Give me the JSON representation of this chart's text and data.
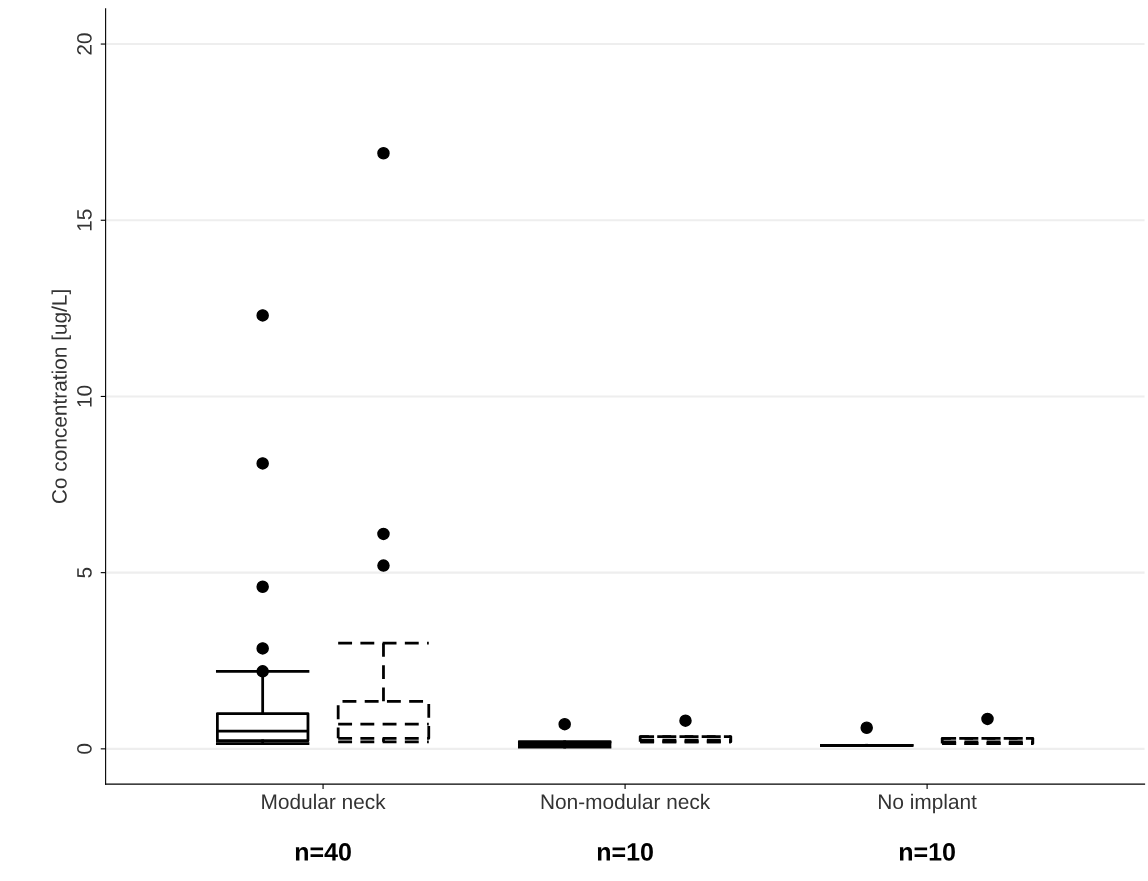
{
  "chart_data": {
    "type": "box",
    "ylabel": "Co concentration [ug/L]",
    "categories": [
      "Modular neck",
      "Non-modular neck",
      "No implant"
    ],
    "series": [
      {
        "color": "#000000",
        "line_style": "solid",
        "boxes": [
          {
            "low": 0.15,
            "q1": 0.23,
            "median": 0.5,
            "q3": 1.0,
            "high": 2.2,
            "outliers": [
              12.3,
              8.1,
              4.6,
              2.85,
              2.2
            ]
          },
          {
            "low": 0.05,
            "q1": 0.1,
            "median": 0.15,
            "q3": 0.2,
            "high": 0.2,
            "outliers": [
              0.7
            ]
          },
          {
            "low": 0.1,
            "q1": 0.1,
            "median": 0.1,
            "q3": 0.1,
            "high": 0.1,
            "outliers": [
              0.6
            ]
          }
        ]
      },
      {
        "color": "#000000",
        "line_style": "dashed",
        "boxes": [
          {
            "low": 0.2,
            "q1": 0.3,
            "median": 0.7,
            "q3": 1.35,
            "high": 3.0,
            "outliers": [
              16.9,
              6.1,
              5.2
            ]
          },
          {
            "low": 0.2,
            "q1": 0.2,
            "median": 0.25,
            "q3": 0.35,
            "high": 0.35,
            "outliers": [
              0.8
            ]
          },
          {
            "low": 0.15,
            "q1": 0.15,
            "median": 0.2,
            "q3": 0.3,
            "high": 0.3,
            "outliers": [
              0.85
            ]
          }
        ]
      }
    ],
    "ylim": [
      -1,
      21
    ],
    "yticks": [
      0,
      5,
      10,
      15,
      20
    ],
    "grid": "y",
    "legend": false,
    "annotations": [
      "n=40",
      "n=10",
      "n=10"
    ]
  }
}
